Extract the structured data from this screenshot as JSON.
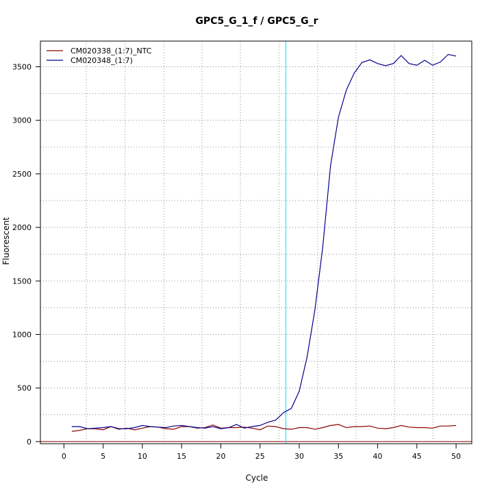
{
  "chart_data": {
    "type": "line",
    "title": "GPC5_G_1_f / GPC5_G_r",
    "xlabel": "Cycle",
    "ylabel": "Fluorescent",
    "xlim": [
      -3,
      52
    ],
    "ylim": [
      -20,
      3740
    ],
    "x_ticks": [
      "0",
      "5",
      "10",
      "15",
      "20",
      "25",
      "30",
      "35",
      "40",
      "45",
      "50"
    ],
    "y_ticks": [
      "0",
      "500",
      "1000",
      "1500",
      "2000",
      "2500",
      "3000",
      "3500"
    ],
    "grid": true,
    "grid_x_minor": [
      2.85,
      7.8,
      12.75,
      17.6,
      22.5,
      27.45,
      32.35,
      37.25,
      42.15,
      47.05
    ],
    "threshold_cycle": 28.3,
    "threshold_color": "#00e5ff",
    "baseline_color": "#8b0000",
    "legend_position": "top-left",
    "x": [
      1,
      2,
      3,
      4,
      5,
      6,
      7,
      8,
      9,
      10,
      11,
      12,
      13,
      14,
      15,
      16,
      17,
      18,
      19,
      20,
      21,
      22,
      23,
      24,
      25,
      26,
      27,
      28,
      29,
      30,
      31,
      32,
      33,
      34,
      35,
      36,
      37,
      38,
      39,
      40,
      41,
      42,
      43,
      44,
      45,
      46,
      47,
      48,
      49,
      50
    ],
    "series": [
      {
        "name": "CM020338_(1:7)_NTC",
        "color": "#8b0000",
        "values": [
          95,
          105,
          120,
          120,
          110,
          140,
          115,
          125,
          110,
          125,
          140,
          135,
          120,
          115,
          140,
          140,
          125,
          130,
          155,
          125,
          130,
          130,
          135,
          125,
          110,
          145,
          140,
          120,
          115,
          130,
          130,
          115,
          130,
          150,
          160,
          130,
          140,
          140,
          145,
          125,
          120,
          130,
          150,
          135,
          130,
          130,
          125,
          145,
          145,
          150
        ]
      },
      {
        "name": "CM020348_(1:7)",
        "color": "#00008b",
        "values": [
          140,
          140,
          120,
          125,
          130,
          140,
          120,
          120,
          130,
          150,
          140,
          135,
          130,
          145,
          150,
          140,
          130,
          125,
          140,
          120,
          130,
          160,
          125,
          140,
          150,
          180,
          200,
          270,
          310,
          470,
          790,
          1230,
          1820,
          2580,
          3030,
          3280,
          3440,
          3540,
          3565,
          3530,
          3510,
          3530,
          3605,
          3530,
          3515,
          3560,
          3515,
          3545,
          3615,
          3600
        ]
      }
    ]
  }
}
